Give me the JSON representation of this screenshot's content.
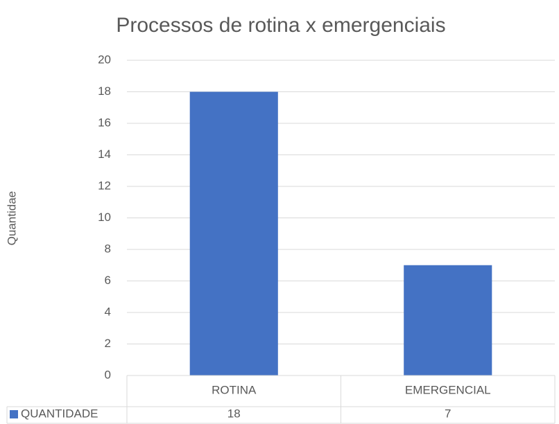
{
  "chart_data": {
    "type": "bar",
    "title": "Processos de rotina x emergenciais",
    "y_label": "Quantidae",
    "categories": [
      "ROTINA",
      "EMERGENCIAL"
    ],
    "series": [
      {
        "name": "QUANTIDADE",
        "color": "#4472c4",
        "values": [
          18,
          7
        ]
      }
    ],
    "ylim": [
      0,
      20
    ],
    "yticks": [
      0,
      2,
      4,
      6,
      8,
      10,
      12,
      14,
      16,
      18,
      20
    ],
    "grid": true,
    "data_table": true
  }
}
